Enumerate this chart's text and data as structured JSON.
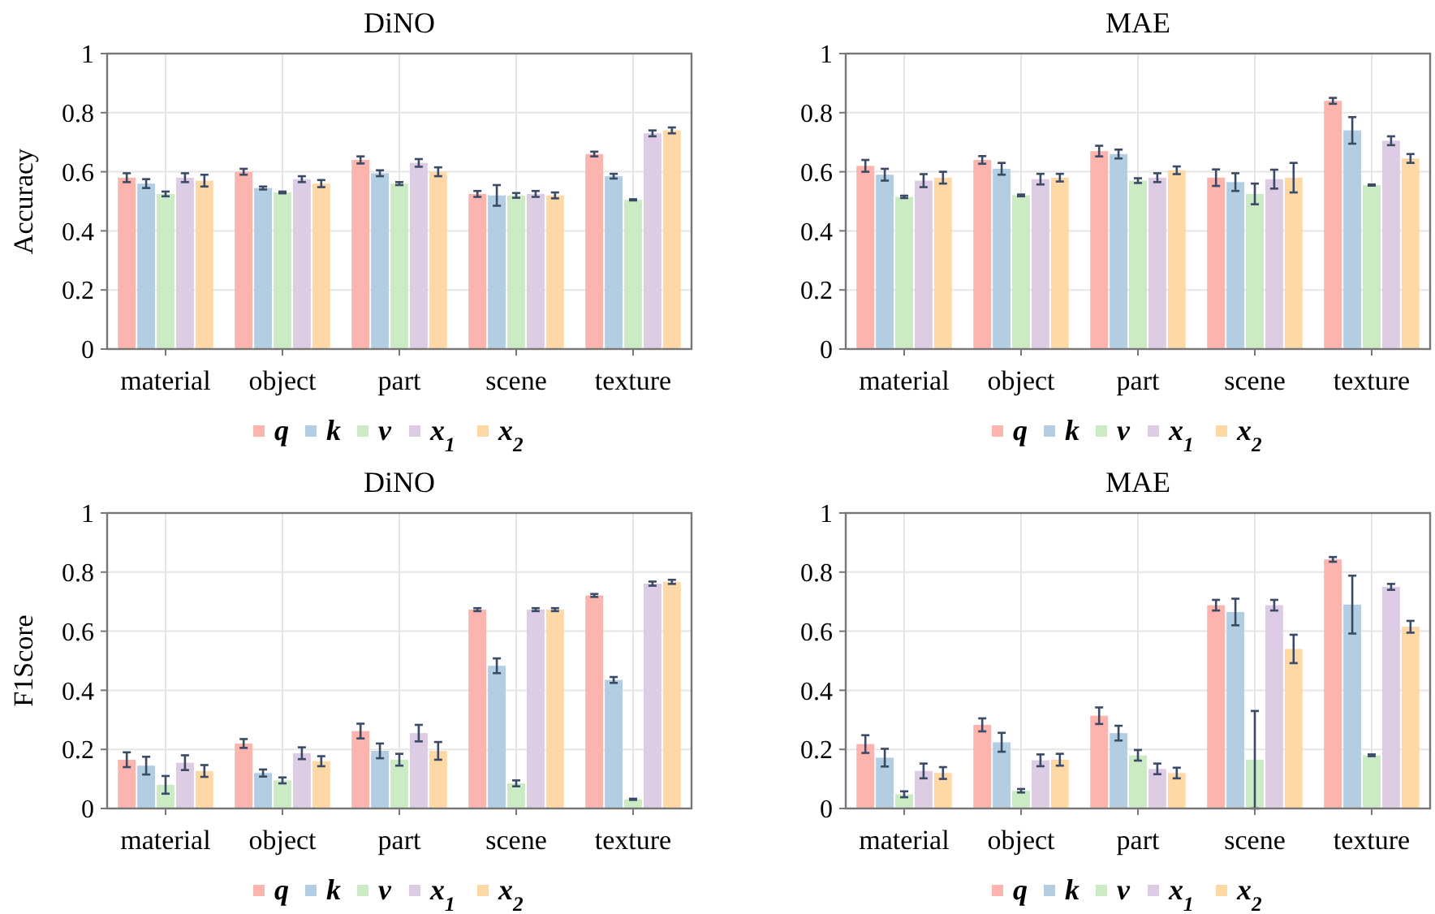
{
  "chart_data": [
    {
      "type": "bar",
      "title": "DiNO",
      "ylabel": "Accuracy",
      "categories": [
        "material",
        "object",
        "part",
        "scene",
        "texture"
      ],
      "ylim": [
        0,
        1
      ],
      "yticks": [
        0,
        0.2,
        0.4,
        0.6,
        0.8,
        1
      ],
      "grid": true,
      "legend": "bottom",
      "series": [
        {
          "name": "q",
          "color": "#fbb4ae",
          "values": [
            0.58,
            0.6,
            0.64,
            0.525,
            0.66
          ],
          "errors": [
            0.015,
            0.01,
            0.012,
            0.01,
            0.008
          ]
        },
        {
          "name": "k",
          "color": "#b3cde3",
          "values": [
            0.56,
            0.545,
            0.595,
            0.52,
            0.585
          ],
          "errors": [
            0.015,
            0.005,
            0.01,
            0.035,
            0.008
          ]
        },
        {
          "name": "v",
          "color": "#ccebc5",
          "values": [
            0.525,
            0.53,
            0.56,
            0.52,
            0.505
          ],
          "errors": [
            0.008,
            0.003,
            0.005,
            0.008,
            0.002
          ]
        },
        {
          "name": "x$_{1}$",
          "color": "#decbe4",
          "values": [
            0.58,
            0.575,
            0.63,
            0.525,
            0.73
          ],
          "errors": [
            0.015,
            0.01,
            0.013,
            0.01,
            0.01
          ]
        },
        {
          "name": "x$_{2}$",
          "color": "#fed9a6",
          "values": [
            0.57,
            0.56,
            0.6,
            0.52,
            0.74
          ],
          "errors": [
            0.02,
            0.012,
            0.015,
            0.01,
            0.01
          ]
        }
      ]
    },
    {
      "type": "bar",
      "title": "MAE",
      "categories": [
        "material",
        "object",
        "part",
        "scene",
        "texture"
      ],
      "ylim": [
        0,
        1
      ],
      "yticks": [
        0,
        0.2,
        0.4,
        0.6,
        0.8,
        1
      ],
      "grid": true,
      "legend": "bottom",
      "series": [
        {
          "name": "q",
          "color": "#fbb4ae",
          "values": [
            0.62,
            0.64,
            0.67,
            0.58,
            0.84
          ],
          "errors": [
            0.02,
            0.013,
            0.018,
            0.028,
            0.01
          ]
        },
        {
          "name": "k",
          "color": "#b3cde3",
          "values": [
            0.59,
            0.61,
            0.66,
            0.565,
            0.74
          ],
          "errors": [
            0.02,
            0.02,
            0.015,
            0.03,
            0.045
          ]
        },
        {
          "name": "v",
          "color": "#ccebc5",
          "values": [
            0.515,
            0.52,
            0.57,
            0.525,
            0.555
          ],
          "errors": [
            0.004,
            0.003,
            0.008,
            0.035,
            0.002
          ]
        },
        {
          "name": "x$_{1}$",
          "color": "#decbe4",
          "values": [
            0.57,
            0.575,
            0.58,
            0.575,
            0.705
          ],
          "errors": [
            0.022,
            0.018,
            0.015,
            0.032,
            0.015
          ]
        },
        {
          "name": "x$_{2}$",
          "color": "#fed9a6",
          "values": [
            0.58,
            0.58,
            0.605,
            0.58,
            0.645
          ],
          "errors": [
            0.02,
            0.013,
            0.013,
            0.05,
            0.015
          ]
        }
      ]
    },
    {
      "type": "bar",
      "title": "DiNO",
      "ylabel": "F1Score",
      "categories": [
        "material",
        "object",
        "part",
        "scene",
        "texture"
      ],
      "ylim": [
        0,
        1
      ],
      "yticks": [
        0,
        0.2,
        0.4,
        0.6,
        0.8,
        1
      ],
      "grid": true,
      "legend": "bottom",
      "series": [
        {
          "name": "q",
          "color": "#fbb4ae",
          "values": [
            0.165,
            0.22,
            0.262,
            0.673,
            0.721
          ],
          "errors": [
            0.025,
            0.015,
            0.025,
            0.005,
            0.005
          ]
        },
        {
          "name": "k",
          "color": "#b3cde3",
          "values": [
            0.145,
            0.12,
            0.195,
            0.483,
            0.435
          ],
          "errors": [
            0.03,
            0.012,
            0.025,
            0.025,
            0.01
          ]
        },
        {
          "name": "v",
          "color": "#ccebc5",
          "values": [
            0.08,
            0.095,
            0.165,
            0.085,
            0.031
          ],
          "errors": [
            0.03,
            0.01,
            0.02,
            0.01,
            0.002
          ]
        },
        {
          "name": "x$_{1}$",
          "color": "#decbe4",
          "values": [
            0.155,
            0.187,
            0.255,
            0.673,
            0.761
          ],
          "errors": [
            0.025,
            0.02,
            0.028,
            0.005,
            0.007
          ]
        },
        {
          "name": "x$_{2}$",
          "color": "#fed9a6",
          "values": [
            0.127,
            0.16,
            0.195,
            0.673,
            0.767
          ],
          "errors": [
            0.02,
            0.017,
            0.03,
            0.005,
            0.007
          ]
        }
      ]
    },
    {
      "type": "bar",
      "title": "MAE",
      "categories": [
        "material",
        "object",
        "part",
        "scene",
        "texture"
      ],
      "ylim": [
        0,
        1
      ],
      "yticks": [
        0,
        0.2,
        0.4,
        0.6,
        0.8,
        1
      ],
      "grid": true,
      "legend": "bottom",
      "series": [
        {
          "name": "q",
          "color": "#fbb4ae",
          "values": [
            0.218,
            0.283,
            0.314,
            0.688,
            0.843
          ],
          "errors": [
            0.03,
            0.022,
            0.028,
            0.018,
            0.008
          ]
        },
        {
          "name": "k",
          "color": "#b3cde3",
          "values": [
            0.172,
            0.224,
            0.255,
            0.665,
            0.69
          ],
          "errors": [
            0.03,
            0.032,
            0.025,
            0.045,
            0.098
          ]
        },
        {
          "name": "v",
          "color": "#ccebc5",
          "values": [
            0.048,
            0.06,
            0.18,
            0.165,
            0.18
          ],
          "errors": [
            0.01,
            0.006,
            0.018,
            0.165,
            0.003
          ]
        },
        {
          "name": "x$_{1}$",
          "color": "#decbe4",
          "values": [
            0.127,
            0.163,
            0.134,
            0.688,
            0.75
          ],
          "errors": [
            0.025,
            0.02,
            0.018,
            0.018,
            0.01
          ]
        },
        {
          "name": "x$_{2}$",
          "color": "#fed9a6",
          "values": [
            0.12,
            0.165,
            0.12,
            0.54,
            0.615
          ],
          "errors": [
            0.02,
            0.02,
            0.018,
            0.048,
            0.02
          ]
        }
      ]
    }
  ]
}
